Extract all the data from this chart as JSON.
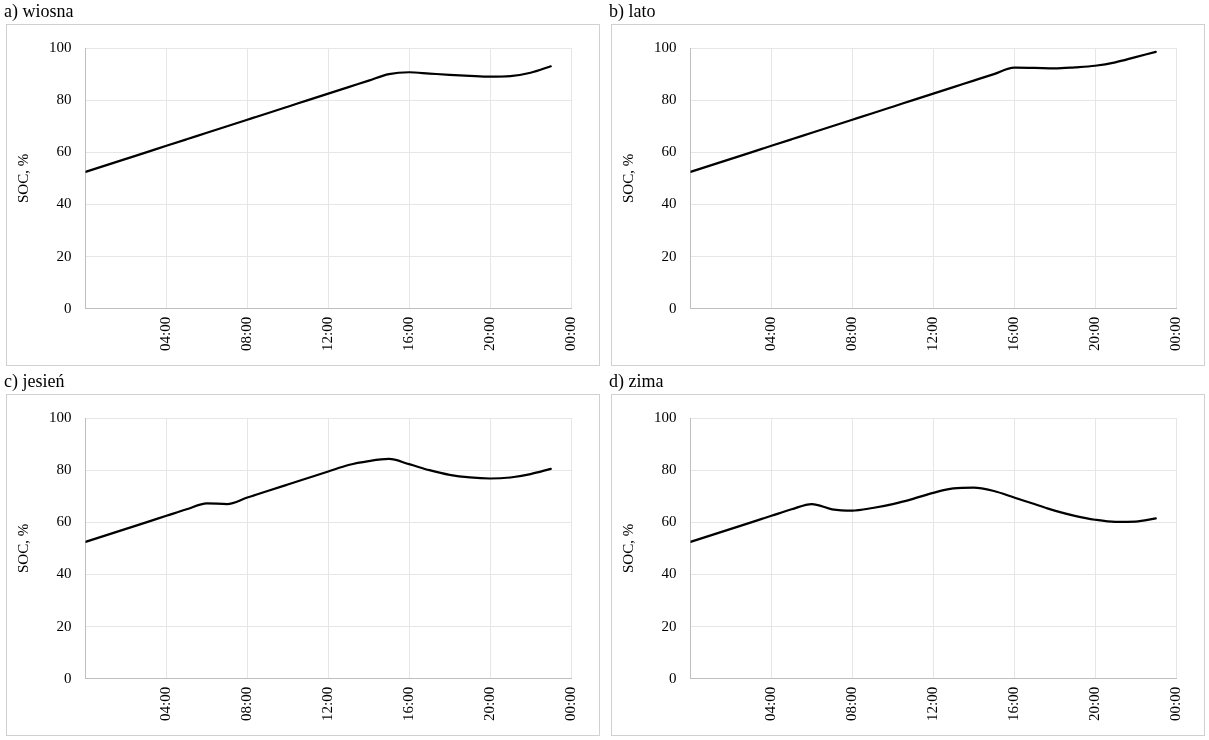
{
  "chart_data": [
    {
      "type": "line",
      "title": "a) wiosna",
      "ylabel": "SOC, %",
      "color": "#000000",
      "marker": "none",
      "grid": true,
      "xlim": [
        0,
        24
      ],
      "xticks": [
        {
          "value": 4,
          "label": "04:00"
        },
        {
          "value": 8,
          "label": "08:00"
        },
        {
          "value": 12,
          "label": "12:00"
        },
        {
          "value": 16,
          "label": "16:00"
        },
        {
          "value": 20,
          "label": "20:00"
        },
        {
          "value": 24,
          "label": "00:00"
        }
      ],
      "ylim": [
        0,
        100
      ],
      "yticks": [
        0,
        20,
        40,
        60,
        80,
        100
      ],
      "x": [
        0,
        1,
        2,
        3,
        4,
        5,
        6,
        7,
        8,
        9,
        10,
        11,
        12,
        13,
        14,
        15,
        16,
        17,
        18,
        19,
        20,
        21,
        22,
        23
      ],
      "values": [
        52.5,
        55,
        57.5,
        60,
        62.5,
        65,
        67.5,
        70,
        72.5,
        75,
        77.5,
        80,
        82.5,
        85,
        87.5,
        90,
        90.7,
        90.2,
        89.7,
        89.3,
        89,
        89.2,
        90.5,
        93
      ]
    },
    {
      "type": "line",
      "title": "b) lato",
      "ylabel": "SOC, %",
      "color": "#000000",
      "marker": "none",
      "grid": true,
      "xlim": [
        0,
        24
      ],
      "xticks": [
        {
          "value": 4,
          "label": "04:00"
        },
        {
          "value": 8,
          "label": "08:00"
        },
        {
          "value": 12,
          "label": "12:00"
        },
        {
          "value": 16,
          "label": "16:00"
        },
        {
          "value": 20,
          "label": "20:00"
        },
        {
          "value": 24,
          "label": "00:00"
        }
      ],
      "ylim": [
        0,
        100
      ],
      "yticks": [
        0,
        20,
        40,
        60,
        80,
        100
      ],
      "x": [
        0,
        1,
        2,
        3,
        4,
        5,
        6,
        7,
        8,
        9,
        10,
        11,
        12,
        13,
        14,
        15,
        16,
        17,
        18,
        19,
        20,
        21,
        22,
        23
      ],
      "values": [
        52.5,
        55,
        57.5,
        60,
        62.5,
        65,
        67.5,
        70,
        72.5,
        75,
        77.5,
        80,
        82.5,
        85,
        87.5,
        90,
        92.5,
        92.4,
        92.2,
        92.6,
        93.2,
        94.5,
        96.5,
        98.5
      ]
    },
    {
      "type": "line",
      "title": "c) jesień",
      "ylabel": "SOC, %",
      "color": "#000000",
      "marker": "none",
      "grid": true,
      "xlim": [
        0,
        24
      ],
      "xticks": [
        {
          "value": 4,
          "label": "04:00"
        },
        {
          "value": 8,
          "label": "08:00"
        },
        {
          "value": 12,
          "label": "12:00"
        },
        {
          "value": 16,
          "label": "16:00"
        },
        {
          "value": 20,
          "label": "20:00"
        },
        {
          "value": 24,
          "label": "00:00"
        }
      ],
      "ylim": [
        0,
        100
      ],
      "yticks": [
        0,
        20,
        40,
        60,
        80,
        100
      ],
      "x": [
        0,
        1,
        2,
        3,
        4,
        5,
        6,
        7,
        8,
        9,
        10,
        11,
        12,
        13,
        14,
        15,
        16,
        17,
        18,
        19,
        20,
        21,
        22,
        23
      ],
      "values": [
        52.5,
        55,
        57.5,
        60,
        62.5,
        65,
        67.3,
        67,
        69.5,
        72,
        74.5,
        77,
        79.5,
        82,
        83.5,
        84.3,
        82.3,
        80,
        78.2,
        77.2,
        76.8,
        77.2,
        78.5,
        80.5
      ]
    },
    {
      "type": "line",
      "title": "d) zima",
      "ylabel": "SOC, %",
      "color": "#000000",
      "marker": "none",
      "grid": true,
      "xlim": [
        0,
        24
      ],
      "xticks": [
        {
          "value": 4,
          "label": "04:00"
        },
        {
          "value": 8,
          "label": "08:00"
        },
        {
          "value": 12,
          "label": "12:00"
        },
        {
          "value": 16,
          "label": "16:00"
        },
        {
          "value": 20,
          "label": "20:00"
        },
        {
          "value": 24,
          "label": "00:00"
        }
      ],
      "ylim": [
        0,
        100
      ],
      "yticks": [
        0,
        20,
        40,
        60,
        80,
        100
      ],
      "x": [
        0,
        1,
        2,
        3,
        4,
        5,
        6,
        7,
        8,
        9,
        10,
        11,
        12,
        13,
        14,
        15,
        16,
        17,
        18,
        19,
        20,
        21,
        22,
        23
      ],
      "values": [
        52.5,
        55,
        57.5,
        60,
        62.5,
        65,
        67,
        65,
        64.5,
        65.5,
        67,
        69,
        71.3,
        73,
        73.3,
        72,
        69.5,
        67,
        64.5,
        62.5,
        61,
        60.2,
        60.3,
        61.5
      ]
    }
  ]
}
